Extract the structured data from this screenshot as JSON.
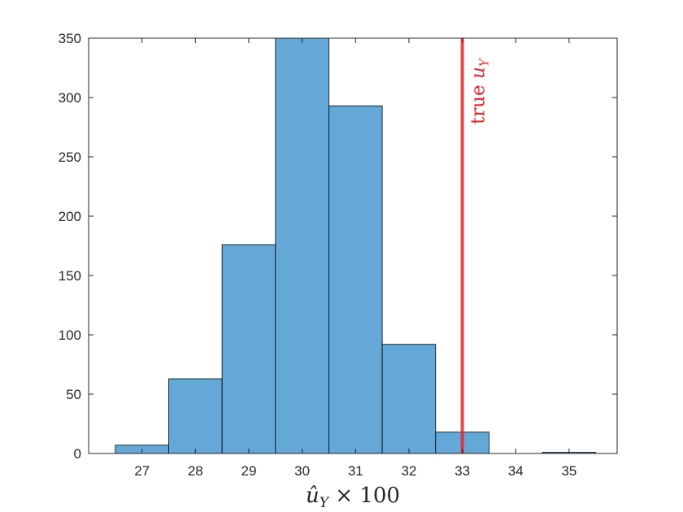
{
  "chart_data": {
    "type": "histogram",
    "bin_edges": [
      26.5,
      27.5,
      28.5,
      29.5,
      30.5,
      31.5,
      32.5,
      33.5,
      34.5,
      35.5
    ],
    "counts": [
      7,
      63,
      176,
      350,
      293,
      92,
      18,
      0,
      1
    ],
    "xticks": [
      27,
      28,
      29,
      30,
      31,
      32,
      33,
      34,
      35
    ],
    "yticks": [
      0,
      50,
      100,
      150,
      200,
      250,
      300,
      350
    ],
    "xlim": [
      26,
      35.9
    ],
    "ylim": [
      0,
      350
    ],
    "xlabel": "û_Y × 100",
    "bar_color": "#64a8d8",
    "bar_edge_color": "#000000",
    "reference_line": {
      "x": 33,
      "label": "true u_Y",
      "color": "#e8242b"
    },
    "grid": false
  }
}
